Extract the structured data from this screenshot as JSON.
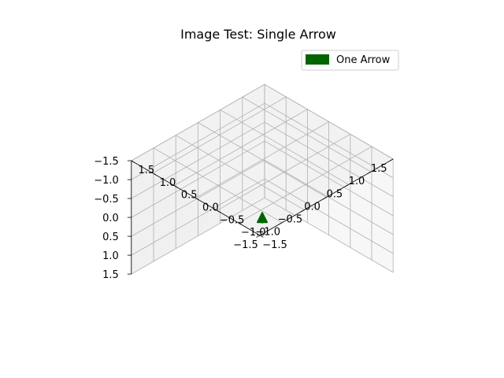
{
  "chart_data": {
    "type": "3d-quiver",
    "title": "Image Test: Single Arrow",
    "xlim": [
      -1.5,
      1.5
    ],
    "ylim": [
      -1.5,
      1.5
    ],
    "zlim": [
      -1.5,
      1.5
    ],
    "x_ticks": [
      "−1.5",
      "−1.0",
      "−0.5",
      "0.0",
      "0.5",
      "1.0",
      "1.5"
    ],
    "y_ticks": [
      "−1.5",
      "−1.0",
      "−0.5",
      "0.0",
      "0.5",
      "1.0",
      "1.5"
    ],
    "z_ticks": [
      "−1.5",
      "−1.0",
      "−0.5",
      "0.0",
      "0.5",
      "1.0",
      "1.5"
    ],
    "grid": true,
    "legend": {
      "placement": "top-right",
      "entries": [
        {
          "label": "One Arrow",
          "color": "#006400"
        }
      ]
    },
    "series": [
      {
        "name": "One Arrow",
        "color": "#006400",
        "arrows": [
          {
            "x": 0,
            "y": 0,
            "z": 0,
            "u": 0,
            "v": 0,
            "w": -0.1
          }
        ]
      }
    ]
  }
}
